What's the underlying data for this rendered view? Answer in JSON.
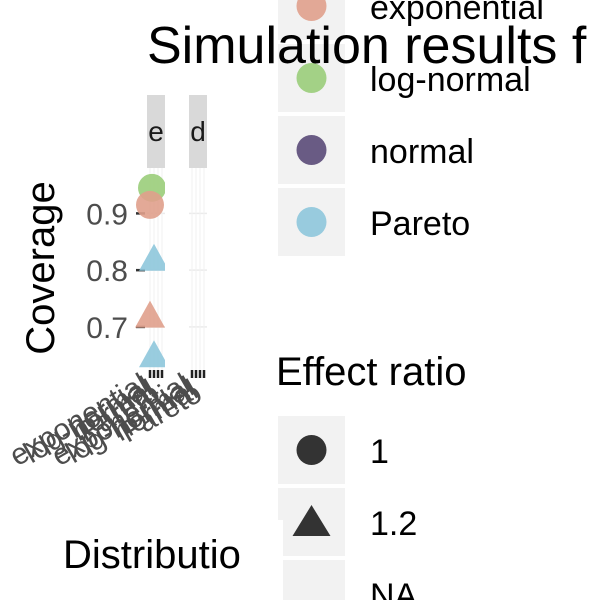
{
  "chart_data": {
    "type": "scatter",
    "title": "Simulation results f",
    "xlabel": "Distributio",
    "ylabel": "Coverage",
    "panels": [
      "e",
      "d"
    ],
    "categories": [
      "exponential",
      "log-normal",
      "normal",
      "Pareto"
    ],
    "y_ticks": [
      0.7,
      0.8,
      0.9
    ],
    "ylim": [
      0.61,
      0.98
    ],
    "grid": true,
    "legend_position": "right",
    "color_legend": {
      "entries": [
        {
          "label": "exponential",
          "color": "#E0A08C"
        },
        {
          "label": "log-normal",
          "color": "#9ACD7A"
        },
        {
          "label": "normal",
          "color": "#5A4A78"
        },
        {
          "label": "Pareto",
          "color": "#8EC6DC"
        }
      ]
    },
    "shape_legend": {
      "title": "Effect ratio",
      "entries": [
        {
          "label": "1",
          "shape": "circle"
        },
        {
          "label": "1.2",
          "shape": "triangle"
        },
        {
          "label": "NA",
          "shape": "none"
        }
      ]
    },
    "points": [
      {
        "panel": "e",
        "x": "log-normal",
        "y": 0.945,
        "shape": "circle",
        "color": "#9ACD7A"
      },
      {
        "panel": "e",
        "x": "exponential",
        "y": 0.915,
        "shape": "circle",
        "color": "#E0A08C"
      },
      {
        "panel": "e",
        "x": "Pareto",
        "y": 0.82,
        "shape": "triangle",
        "color": "#8EC6DC"
      },
      {
        "panel": "e",
        "x": "exponential",
        "y": 0.72,
        "shape": "triangle",
        "color": "#E0A08C"
      },
      {
        "panel": "e",
        "x": "Pareto",
        "y": 0.65,
        "shape": "triangle",
        "color": "#8EC6DC"
      }
    ]
  }
}
